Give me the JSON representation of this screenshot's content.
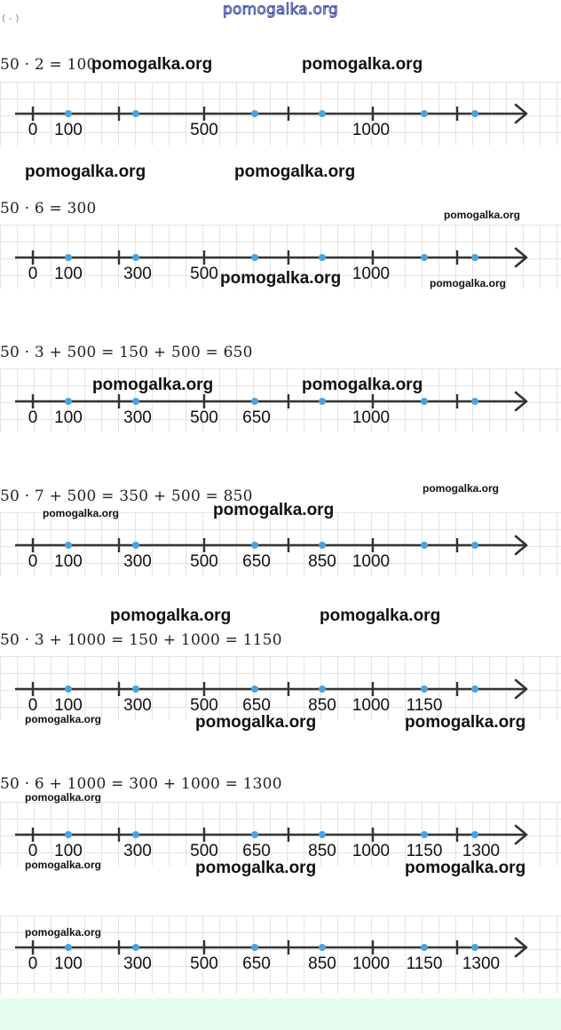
{
  "site_watermark": "pomogalka.org",
  "fragment": "( - )",
  "watermark_text": "pomogalka.org",
  "colors": {
    "point": "#4aa3df",
    "axis": "#333333",
    "grid": "#e4e4e4",
    "footer": "#e5fdef"
  },
  "lines": [
    {
      "equation": "50 · 2 = 100",
      "labels": [
        "0",
        "100",
        "500",
        "1000"
      ]
    },
    {
      "equation": "50 · 6 = 300",
      "labels": [
        "0",
        "100",
        "300",
        "500",
        "1000"
      ]
    },
    {
      "equation": "50 · 3 + 500 = 150 + 500 = 650",
      "labels": [
        "0",
        "100",
        "300",
        "500",
        "650",
        "1000"
      ]
    },
    {
      "equation": "50 · 7 + 500 = 350 + 500 = 850",
      "labels": [
        "0",
        "100",
        "300",
        "500",
        "650",
        "850",
        "1000"
      ]
    },
    {
      "equation": "50 · 3 + 1000 = 150 + 1000 = 1150",
      "labels": [
        "0",
        "100",
        "300",
        "500",
        "650",
        "850",
        "1000",
        "1150"
      ]
    },
    {
      "equation": "50 · 6 + 1000 = 300 + 1000 = 1300",
      "labels": [
        "0",
        "100",
        "300",
        "500",
        "650",
        "850",
        "1000",
        "1150",
        "1300"
      ]
    },
    {
      "equation": "",
      "labels": [
        "0",
        "100",
        "300",
        "500",
        "650",
        "850",
        "1000",
        "1150",
        "1300"
      ]
    }
  ]
}
